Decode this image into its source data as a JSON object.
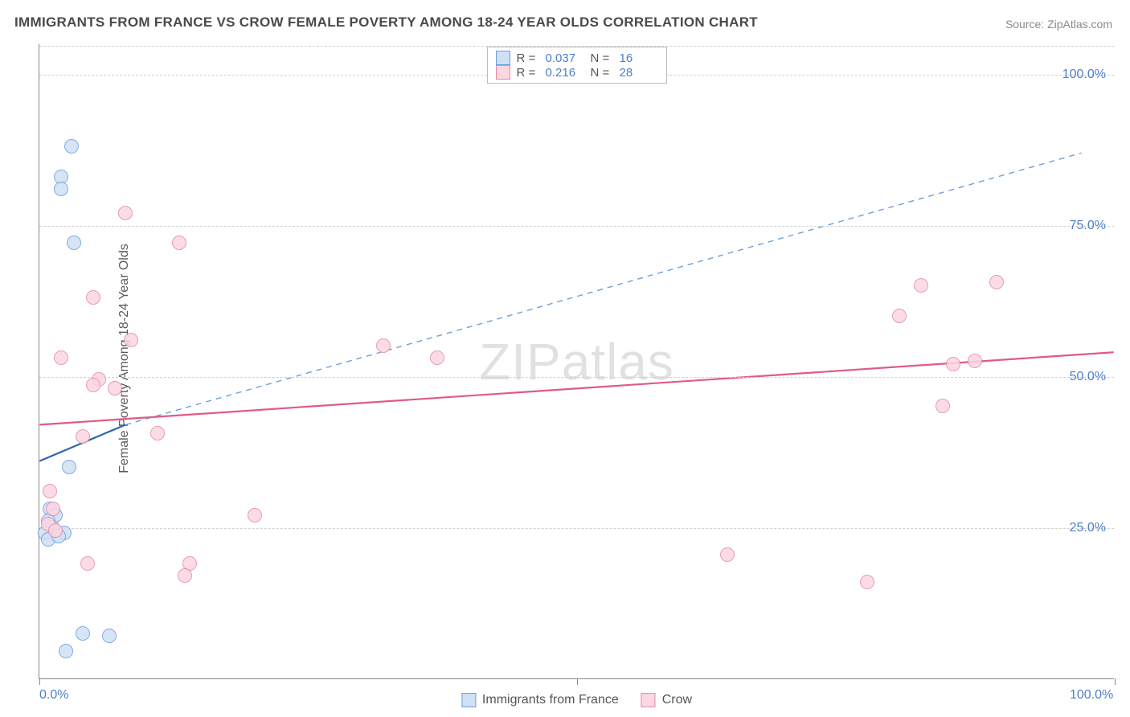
{
  "title": "IMMIGRANTS FROM FRANCE VS CROW FEMALE POVERTY AMONG 18-24 YEAR OLDS CORRELATION CHART",
  "source": "Source: ZipAtlas.com",
  "ylabel": "Female Poverty Among 18-24 Year Olds",
  "watermark": "ZIPatlas",
  "chart": {
    "type": "scatter",
    "xlim": [
      0,
      100
    ],
    "ylim": [
      0,
      105
    ],
    "y_ticks": [
      25,
      50,
      75,
      100
    ],
    "y_tick_labels": [
      "25.0%",
      "50.0%",
      "75.0%",
      "100.0%"
    ],
    "x_ticks": [
      0,
      50,
      100
    ],
    "x_tick_labels_shown": {
      "0": "0.0%",
      "100": "100.0%"
    },
    "grid_color": "#d0d0d0",
    "background_color": "#ffffff",
    "axis_color": "#888888",
    "marker_radius": 9,
    "series": [
      {
        "name": "Immigrants from France",
        "fill": "#cfe0f5",
        "stroke": "#6f9ed9",
        "R": "0.037",
        "N": "16",
        "points": [
          [
            3.0,
            88.0
          ],
          [
            2.0,
            83.0
          ],
          [
            2.0,
            81.0
          ],
          [
            3.2,
            72.0
          ],
          [
            1.0,
            28.0
          ],
          [
            1.5,
            27.0
          ],
          [
            0.8,
            26.0
          ],
          [
            1.2,
            25.0
          ],
          [
            0.5,
            24.0
          ],
          [
            2.3,
            24.0
          ],
          [
            0.8,
            23.0
          ],
          [
            1.8,
            23.5
          ],
          [
            2.8,
            35.0
          ],
          [
            4.0,
            7.5
          ],
          [
            6.5,
            7.0
          ],
          [
            2.5,
            4.5
          ]
        ],
        "trend": {
          "x1": 0,
          "y1": 36,
          "x2": 8,
          "y2": 42,
          "dash": false,
          "width": 2.2,
          "color": "#2e63b0"
        },
        "trend_ext": {
          "x1": 8,
          "y1": 42,
          "x2": 97,
          "y2": 87,
          "dash": true,
          "width": 1.4,
          "color": "#6f9ed9"
        }
      },
      {
        "name": "Crow",
        "fill": "#fbd7e1",
        "stroke": "#e68aa6",
        "R": "0.216",
        "N": "28",
        "points": [
          [
            8.0,
            77.0
          ],
          [
            13.0,
            72.0
          ],
          [
            5.0,
            63.0
          ],
          [
            8.5,
            56.0
          ],
          [
            2.0,
            53.0
          ],
          [
            5.5,
            49.5
          ],
          [
            7.0,
            48.0
          ],
          [
            5.0,
            48.5
          ],
          [
            32.0,
            55.0
          ],
          [
            37.0,
            53.0
          ],
          [
            11.0,
            40.5
          ],
          [
            4.0,
            40.0
          ],
          [
            1.0,
            31.0
          ],
          [
            1.3,
            28.0
          ],
          [
            0.8,
            25.5
          ],
          [
            1.5,
            24.5
          ],
          [
            4.5,
            19.0
          ],
          [
            14.0,
            19.0
          ],
          [
            13.5,
            17.0
          ],
          [
            20.0,
            27.0
          ],
          [
            64.0,
            20.5
          ],
          [
            77.0,
            16.0
          ],
          [
            82.0,
            65.0
          ],
          [
            89.0,
            65.5
          ],
          [
            80.0,
            60.0
          ],
          [
            85.0,
            52.0
          ],
          [
            87.0,
            52.5
          ],
          [
            84.0,
            45.0
          ]
        ],
        "trend": {
          "x1": 0,
          "y1": 42,
          "x2": 100,
          "y2": 54,
          "dash": false,
          "width": 2.2,
          "color": "#e05a86"
        }
      }
    ]
  },
  "legend_top": [
    {
      "swatch_fill": "#cfe0f5",
      "swatch_stroke": "#6f9ed9",
      "R": "0.037",
      "N": "16"
    },
    {
      "swatch_fill": "#fbd7e1",
      "swatch_stroke": "#e68aa6",
      "R": "0.216",
      "N": "28"
    }
  ],
  "legend_bottom": [
    {
      "swatch_fill": "#cfe0f5",
      "swatch_stroke": "#6f9ed9",
      "label": "Immigrants from France"
    },
    {
      "swatch_fill": "#fbd7e1",
      "swatch_stroke": "#e68aa6",
      "label": "Crow"
    }
  ]
}
